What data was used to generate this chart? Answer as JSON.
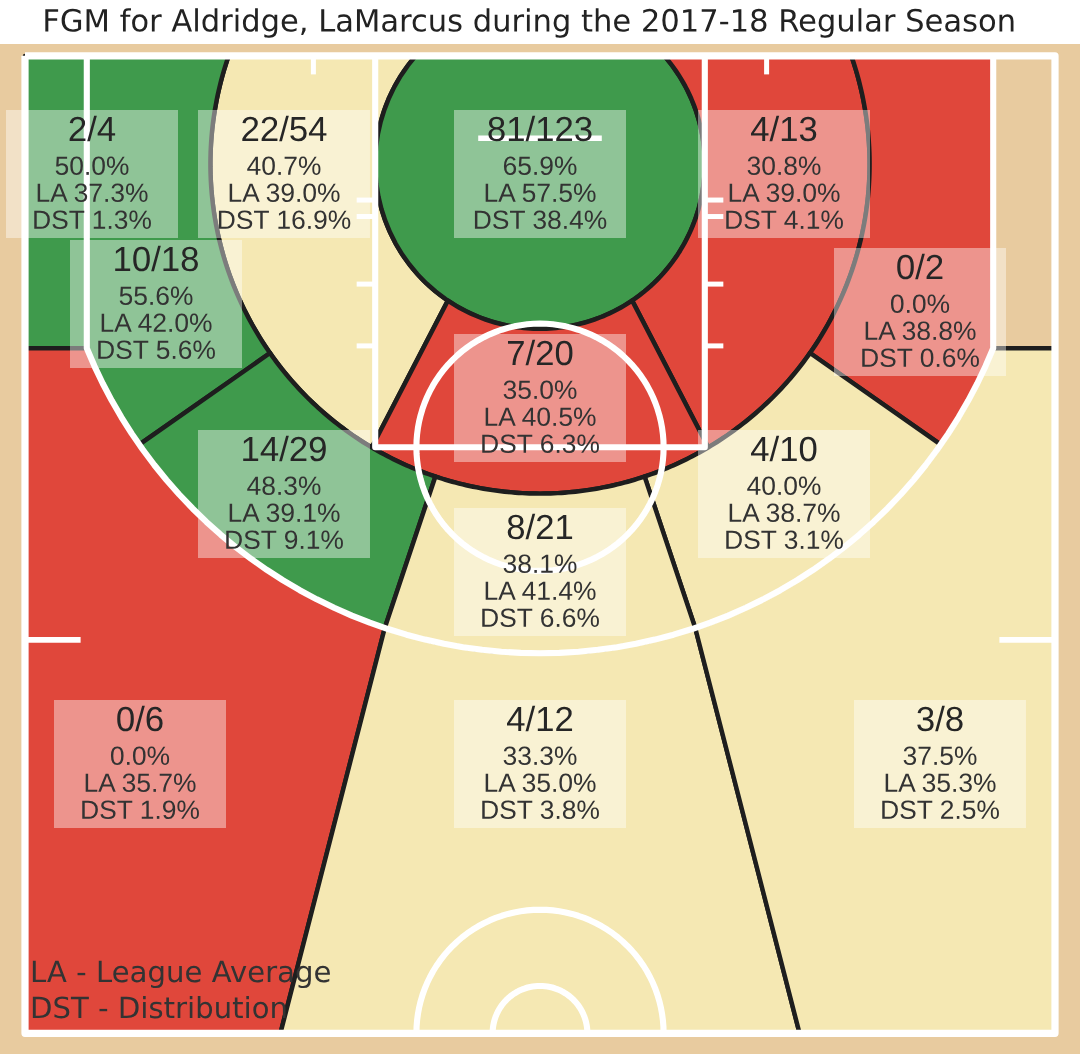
{
  "chart_data": {
    "type": "other",
    "title": "FGM for Aldridge, LaMarcus during the 2017-18 Regular Season",
    "values": [
      50.0,
      40.7,
      65.9,
      30.8,
      55.6,
      0.0,
      35.0,
      48.3,
      40.0,
      38.1,
      0.0,
      33.3,
      37.5
    ],
    "value_labels": [
      "2/4\n50.0%\nLA 37.3%\nDST 1.3%",
      "22/54\n40.7%\nLA 39.0%\nDST 16.9%",
      "81/123\n65.9%\nLA 57.5%\nDST 38.4%",
      "4/13\n30.8%\nLA 39.0%\nDST 4.1%",
      "10/18\n55.6%\nLA 42.0%\nDST 5.6%",
      "0/2\n0.0%\nLA 38.8%\nDST 0.6%",
      "7/20\n35.0%\nLA 40.5%\nDST 6.3%",
      "14/29\n48.3%\nLA 39.1%\nDST 9.1%",
      "4/10\n40.0%\nLA 38.7%\nDST 3.1%",
      "8/21\n38.1%\nLA 41.4%\nDST 6.6%",
      "0/6\n0.0%\nLA 35.7%\nDST 1.9%",
      "4/12\n33.3%\nLA 35.0%\nDST 3.8%",
      "3/8\n37.5%\nLA 35.3%\nDST 2.5%"
    ],
    "colors": [
      "#3f9a4c",
      "#f5e8b3",
      "#3f9a4c",
      "#e0473b",
      "#3f9a4c",
      "#e0473b",
      "#e0473b",
      "#3f9a4c",
      "#f5e8b3",
      "#f5e8b3",
      "#e0473b",
      "#f5e8b3",
      "#f5e8b3"
    ],
    "annotations": [
      "LA - League Average",
      "DST - Distribution"
    ]
  }
}
